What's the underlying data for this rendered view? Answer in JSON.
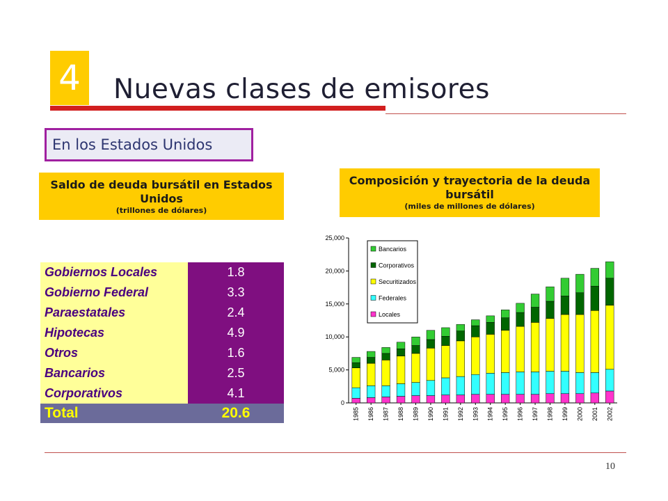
{
  "slide": {
    "number": "4",
    "title": "Nuevas clases de emisores",
    "subtitle": "En los Estados Unidos",
    "page_number": "10",
    "colors": {
      "badge": "#ffcc00",
      "accent_red": "#d21f1f",
      "header": "#ffcc00",
      "value_cells": "#7f0f80",
      "label_cells": "#ffff99",
      "total_row": "#6b6b9a"
    }
  },
  "left_panel": {
    "title": "Saldo de deuda bursátil en Estados Unidos",
    "unit": "(trillones de dólares)",
    "rows": [
      {
        "label": "Gobiernos Locales",
        "value": "1.8"
      },
      {
        "label": "Gobierno Federal",
        "value": "3.3"
      },
      {
        "label": "Paraestatales",
        "value": "2.4"
      },
      {
        "label": "Hipotecas",
        "value": "4.9"
      },
      {
        "label": "Otros",
        "value": "1.6"
      },
      {
        "label": "Bancarios",
        "value": "2.5"
      },
      {
        "label": "Corporativos",
        "value": "4.1"
      }
    ],
    "total": {
      "label": "Total",
      "value": "20.6"
    }
  },
  "right_panel": {
    "title": "Composición y trayectoria de la deuda bursátil",
    "unit": "(miles de millones de dólares)"
  },
  "chart_data": {
    "type": "bar",
    "stacked": true,
    "categories": [
      "1985",
      "1986",
      "1987",
      "1988",
      "1989",
      "1990",
      "1991",
      "1992",
      "1993",
      "1994",
      "1995",
      "1996",
      "1997",
      "1998",
      "1999",
      "2000",
      "2001",
      "2002"
    ],
    "ylim": [
      0,
      25000
    ],
    "yticks": [
      "0",
      "5,000",
      "10,000",
      "15,000",
      "20,000",
      "25,000"
    ],
    "ytick_values": [
      0,
      5000,
      10000,
      15000,
      20000,
      25000
    ],
    "legend_position": "top-left",
    "series": [
      {
        "name": "Locales",
        "color": "#ff33cc",
        "values": [
          700,
          800,
          900,
          1000,
          1100,
          1100,
          1200,
          1200,
          1300,
          1300,
          1300,
          1300,
          1300,
          1400,
          1400,
          1400,
          1500,
          1800
        ]
      },
      {
        "name": "Federales",
        "color": "#33ffff",
        "values": [
          1600,
          1800,
          1700,
          1900,
          2000,
          2300,
          2600,
          2800,
          3000,
          3200,
          3300,
          3400,
          3400,
          3400,
          3400,
          3200,
          3100,
          3300
        ]
      },
      {
        "name": "Securitizados",
        "color": "#ffff00",
        "values": [
          3000,
          3400,
          3900,
          4200,
          4400,
          4900,
          4900,
          5400,
          5700,
          5900,
          6400,
          6900,
          7500,
          8000,
          8600,
          8800,
          9400,
          9700
        ]
      },
      {
        "name": "Corporativos",
        "color": "#006600",
        "values": [
          800,
          900,
          1000,
          1100,
          1200,
          1300,
          1400,
          1500,
          1700,
          1800,
          1900,
          2100,
          2300,
          2600,
          2800,
          3300,
          3700,
          4100
        ]
      },
      {
        "name": "Bancarios",
        "color": "#33cc33",
        "values": [
          800,
          900,
          900,
          1000,
          1300,
          1400,
          1300,
          1000,
          900,
          1000,
          1200,
          1400,
          2000,
          2200,
          2700,
          2800,
          2700,
          2500
        ]
      }
    ]
  }
}
